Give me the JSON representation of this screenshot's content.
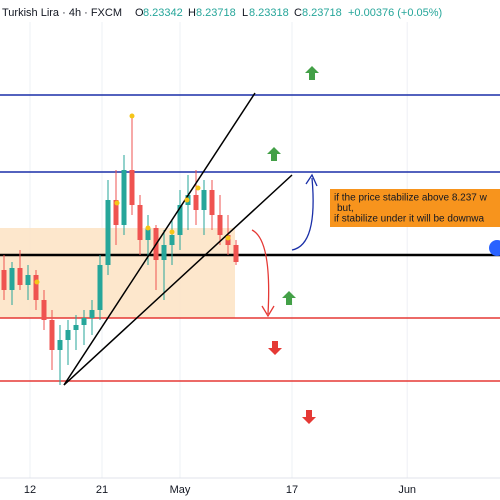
{
  "header": {
    "symbol": "Turkish Lira · 4h · FXCM",
    "o_label": "O",
    "open": "8.23342",
    "h_label": "H",
    "high": "8.23718",
    "l_label": "L",
    "low": "8.23318",
    "c_label": "C",
    "close": "8.23718",
    "change": "+0.00376 (+0.05%)"
  },
  "chart_data": {
    "type": "candlestick",
    "x": [
      0.5,
      1.5,
      2.5,
      3.5,
      4.5,
      5.5,
      6.5,
      7.5,
      8.5,
      9.5,
      10.5,
      11.5,
      12.5,
      13.5,
      14.5,
      15.5,
      16.5,
      17.5,
      18.5,
      19.5,
      20.5,
      21.5,
      22.5,
      23.5,
      24.5,
      25.5,
      26.5,
      27.5,
      28.5,
      29.5
    ],
    "open": [
      8.219,
      8.195,
      8.2214,
      8.201,
      8.213,
      8.183,
      8.159,
      8.123,
      8.135,
      8.147,
      8.153,
      8.1614,
      8.171,
      8.225,
      8.303,
      8.273,
      8.339,
      8.297,
      8.255,
      8.2694,
      8.231,
      8.249,
      8.261,
      8.297,
      8.309,
      8.291,
      8.315,
      8.285,
      8.261,
      8.249
    ],
    "high": [
      8.237,
      8.2286,
      8.243,
      8.225,
      8.219,
      8.195,
      8.171,
      8.153,
      8.159,
      8.165,
      8.171,
      8.183,
      8.237,
      8.327,
      8.339,
      8.357,
      8.405,
      8.309,
      8.285,
      8.273,
      8.267,
      8.279,
      8.315,
      8.333,
      8.339,
      8.327,
      8.327,
      8.309,
      8.285,
      8.255
    ],
    "low": [
      8.183,
      8.177,
      8.195,
      8.183,
      8.171,
      8.147,
      8.099,
      8.081,
      8.105,
      8.123,
      8.129,
      8.141,
      8.159,
      8.213,
      8.249,
      8.261,
      8.285,
      8.237,
      8.225,
      8.195,
      8.183,
      8.225,
      8.243,
      8.267,
      8.273,
      8.261,
      8.267,
      8.249,
      8.237,
      8.225
    ],
    "close": [
      8.195,
      8.2214,
      8.201,
      8.213,
      8.183,
      8.159,
      8.123,
      8.135,
      8.147,
      8.153,
      8.1614,
      8.171,
      8.225,
      8.303,
      8.273,
      8.339,
      8.297,
      8.255,
      8.2694,
      8.231,
      8.249,
      8.261,
      8.297,
      8.309,
      8.291,
      8.315,
      8.285,
      8.261,
      8.249,
      8.2286
    ],
    "up_color": "#26a69a",
    "down_color": "#ef5350",
    "xlim": [
      0,
      62.5
    ],
    "xticks": [
      {
        "value": 3.75,
        "label": "12"
      },
      {
        "value": 12.75,
        "label": "21"
      },
      {
        "value": 22.5,
        "label": "May"
      },
      {
        "value": 36.5,
        "label": "17"
      },
      {
        "value": 50.9,
        "label": "Jun"
      }
    ],
    "ylim": [
      7.979,
      8.543
    ],
    "horizontal_lines": [
      {
        "value": 8.429,
        "color": "#1a2fa8"
      },
      {
        "value": 8.3366,
        "color": "#1a2fa8"
      },
      {
        "value": 8.237,
        "color": "#000000"
      },
      {
        "value": 8.1614,
        "color": "#e53935"
      },
      {
        "value": 8.0858,
        "color": "#e53935"
      }
    ],
    "annotation": [
      "if the price stabilize above 8.237 w",
      "but,",
      "if stabilize under it will be downwa"
    ],
    "grid": true
  }
}
